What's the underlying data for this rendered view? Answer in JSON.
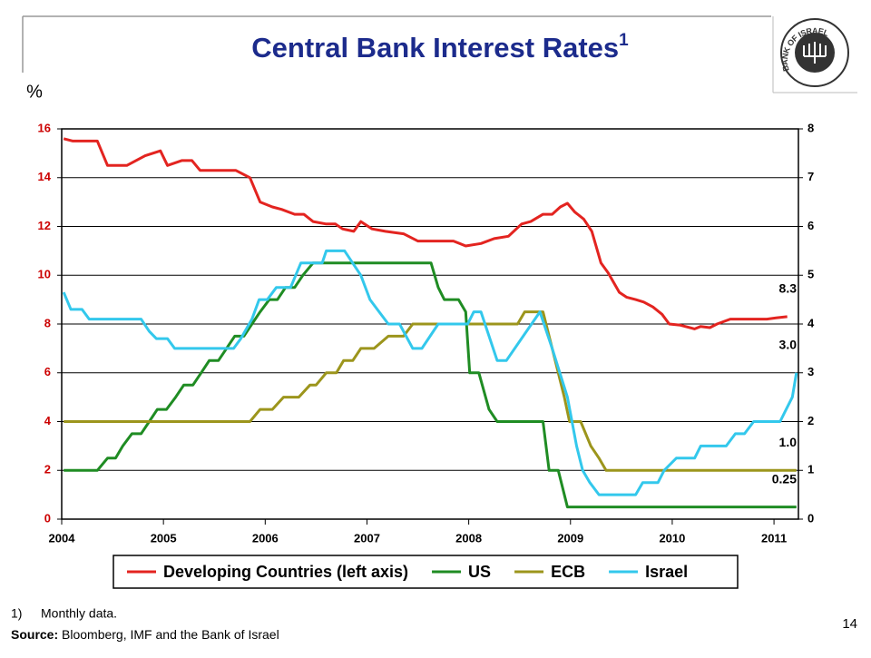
{
  "chart_data": {
    "type": "line",
    "title": "Central Bank Interest Rates",
    "title_note": "1",
    "y_label": "%",
    "xlim": [
      2004,
      2011.24
    ],
    "xticks": [
      2004,
      2005,
      2006,
      2007,
      2008,
      2009,
      2010,
      2011
    ],
    "ylim": [
      0,
      16
    ],
    "yticks": [
      0,
      2,
      4,
      6,
      8,
      10,
      12,
      14,
      16
    ],
    "y2lim": [
      0,
      8
    ],
    "y2ticks": [
      0,
      1,
      2,
      3,
      4,
      5,
      6,
      7,
      8
    ],
    "grid": true,
    "legend": "bottom",
    "series": [
      {
        "name": "Developing Countries (left axis)",
        "color": "#e32420",
        "end_label": "8.3",
        "x": [
          2004.02,
          2004.11,
          2004.24,
          2004.35,
          2004.45,
          2004.64,
          2004.73,
          2004.82,
          2004.97,
          2005.04,
          2005.18,
          2005.28,
          2005.36,
          2005.71,
          2005.85,
          2005.95,
          2006.07,
          2006.16,
          2006.29,
          2006.38,
          2006.47,
          2006.6,
          2006.69,
          2006.76,
          2006.87,
          2006.94,
          2007.05,
          2007.18,
          2007.36,
          2007.5,
          2007.63,
          2007.85,
          2007.97,
          2008.12,
          2008.25,
          2008.39,
          2008.52,
          2008.61,
          2008.73,
          2008.82,
          2008.9,
          2008.97,
          2009.04,
          2009.13,
          2009.21,
          2009.3,
          2009.37,
          2009.48,
          2009.55,
          2009.64,
          2009.72,
          2009.81,
          2009.9,
          2009.97,
          2010.08,
          2010.22,
          2010.28,
          2010.37,
          2010.44,
          2010.57,
          2010.84,
          2010.93,
          2011.02,
          2011.13
        ],
        "values": [
          15.6,
          15.5,
          15.5,
          15.5,
          14.5,
          14.5,
          14.7,
          14.9,
          15.1,
          14.5,
          14.7,
          14.7,
          14.3,
          14.3,
          14.0,
          13.0,
          12.8,
          12.7,
          12.5,
          12.5,
          12.2,
          12.1,
          12.1,
          11.9,
          11.8,
          12.2,
          11.9,
          11.8,
          11.7,
          11.4,
          11.4,
          11.4,
          11.2,
          11.3,
          11.5,
          11.6,
          12.1,
          12.2,
          12.5,
          12.5,
          12.8,
          12.95,
          12.6,
          12.3,
          11.8,
          10.5,
          10.1,
          9.3,
          9.1,
          9.0,
          8.9,
          8.7,
          8.4,
          8.0,
          7.95,
          7.8,
          7.9,
          7.85,
          8.0,
          8.2,
          8.2,
          8.2,
          8.25,
          8.3
        ]
      },
      {
        "name": "US",
        "color": "#1f8c23",
        "axis": "y2",
        "end_label": "0.25",
        "x": [
          2004.02,
          2004.35,
          2004.45,
          2004.53,
          2004.6,
          2004.69,
          2004.78,
          2004.86,
          2004.94,
          2005.03,
          2005.12,
          2005.2,
          2005.29,
          2005.37,
          2005.45,
          2005.54,
          2005.62,
          2005.7,
          2005.79,
          2005.87,
          2005.95,
          2006.04,
          2006.12,
          2006.2,
          2006.29,
          2006.37,
          2006.47,
          2007.63,
          2007.7,
          2007.76,
          2007.9,
          2007.97,
          2008.01,
          2008.1,
          2008.2,
          2008.28,
          2008.73,
          2008.79,
          2008.88,
          2008.97,
          2011.22
        ],
        "values": [
          1,
          1,
          1.25,
          1.25,
          1.5,
          1.75,
          1.75,
          2,
          2.25,
          2.25,
          2.5,
          2.75,
          2.75,
          3,
          3.25,
          3.25,
          3.5,
          3.75,
          3.75,
          4,
          4.25,
          4.5,
          4.5,
          4.75,
          4.75,
          5,
          5.25,
          5.25,
          4.75,
          4.5,
          4.5,
          4.25,
          3,
          3,
          2.25,
          2,
          2,
          1,
          1,
          0.25,
          0.25
        ]
      },
      {
        "name": "ECB",
        "color": "#9c951c",
        "axis": "y2",
        "end_label": "1.0",
        "x": [
          2004.02,
          2005.85,
          2005.95,
          2006.07,
          2006.18,
          2006.33,
          2006.44,
          2006.5,
          2006.6,
          2006.7,
          2006.77,
          2006.86,
          2006.94,
          2007.07,
          2007.21,
          2007.36,
          2007.45,
          2008.48,
          2008.55,
          2008.73,
          2008.82,
          2008.94,
          2008.99,
          2009.1,
          2009.2,
          2009.28,
          2009.35,
          2011.22
        ],
        "values": [
          2,
          2,
          2.25,
          2.25,
          2.5,
          2.5,
          2.75,
          2.75,
          3,
          3,
          3.25,
          3.25,
          3.5,
          3.5,
          3.75,
          3.75,
          4,
          4,
          4.25,
          4.25,
          3.5,
          2.5,
          2,
          2,
          1.5,
          1.25,
          1,
          1
        ]
      },
      {
        "name": "Israel",
        "color": "#33c8ec",
        "axis": "y2",
        "end_label": "3.0",
        "x": [
          2004.02,
          2004.09,
          2004.2,
          2004.27,
          2004.78,
          2004.86,
          2004.93,
          2005.04,
          2005.11,
          2005.69,
          2005.76,
          2005.87,
          2005.94,
          2006.02,
          2006.11,
          2006.25,
          2006.35,
          2006.56,
          2006.6,
          2006.78,
          2006.94,
          2007.03,
          2007.12,
          2007.21,
          2007.32,
          2007.45,
          2007.54,
          2007.7,
          2007.99,
          2008.05,
          2008.12,
          2008.28,
          2008.37,
          2008.7,
          2008.82,
          2008.97,
          2009.06,
          2009.12,
          2009.19,
          2009.28,
          2009.64,
          2009.71,
          2009.86,
          2009.92,
          2010.04,
          2010.22,
          2010.28,
          2010.53,
          2010.62,
          2010.71,
          2010.8,
          2011.06,
          2011.12,
          2011.18,
          2011.22
        ],
        "values": [
          4.65,
          4.3,
          4.3,
          4.1,
          4.1,
          3.85,
          3.7,
          3.7,
          3.5,
          3.5,
          3.7,
          4.1,
          4.5,
          4.5,
          4.75,
          4.75,
          5.25,
          5.25,
          5.5,
          5.5,
          5,
          4.5,
          4.25,
          4,
          4,
          3.5,
          3.5,
          4,
          4,
          4.25,
          4.25,
          3.25,
          3.25,
          4.25,
          3.5,
          2.5,
          1.5,
          1,
          0.75,
          0.5,
          0.5,
          0.75,
          0.75,
          1,
          1.25,
          1.25,
          1.5,
          1.5,
          1.75,
          1.75,
          2,
          2,
          2.25,
          2.5,
          3
        ]
      }
    ]
  },
  "footnote": {
    "marker": "1)",
    "text": "Monthly data."
  },
  "source": {
    "label": "Source:",
    "text": "Bloomberg, IMF and the Bank of Israel"
  },
  "page_number": "14",
  "logo_text": "BANK OF ISRAEL"
}
